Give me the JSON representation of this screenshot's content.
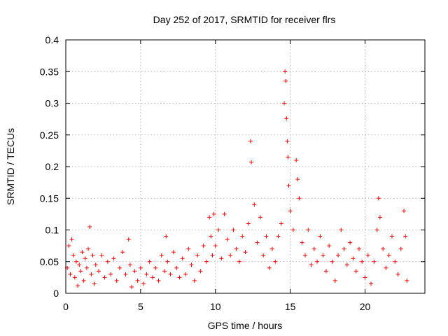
{
  "chart_data": {
    "type": "scatter",
    "title": "Day 252 of 2017, SRMTID for receiver flrs",
    "xlabel": "GPS time / hours",
    "ylabel": "SRMTID / TECUs",
    "xlim": [
      0,
      24
    ],
    "ylim": [
      0,
      0.4
    ],
    "x_ticks": [
      0,
      5,
      10,
      15,
      20
    ],
    "x_tick_labels": [
      "0",
      "5",
      "10",
      "15",
      "20"
    ],
    "y_ticks": [
      0,
      0.05,
      0.1,
      0.15,
      0.2,
      0.25,
      0.3,
      0.35,
      0.4
    ],
    "y_tick_labels": [
      "0",
      "0.05",
      "0.1",
      "0.15",
      "0.2",
      "0.25",
      "0.3",
      "0.35",
      "0.4"
    ],
    "grid": true,
    "marker": "+",
    "color": "#ff0000",
    "series": [
      {
        "name": "SRMTID",
        "points": [
          [
            0.1,
            0.04
          ],
          [
            0.2,
            0.075
          ],
          [
            0.3,
            0.03
          ],
          [
            0.4,
            0.085
          ],
          [
            0.5,
            0.06
          ],
          [
            0.6,
            0.025
          ],
          [
            0.7,
            0.05
          ],
          [
            0.8,
            0.012
          ],
          [
            0.9,
            0.045
          ],
          [
            1.0,
            0.035
          ],
          [
            1.1,
            0.065
          ],
          [
            1.2,
            0.02
          ],
          [
            1.3,
            0.055
          ],
          [
            1.4,
            0.04
          ],
          [
            1.5,
            0.07
          ],
          [
            1.6,
            0.105
          ],
          [
            1.7,
            0.03
          ],
          [
            1.8,
            0.06
          ],
          [
            1.9,
            0.015
          ],
          [
            2.0,
            0.045
          ],
          [
            2.2,
            0.035
          ],
          [
            2.4,
            0.06
          ],
          [
            2.6,
            0.025
          ],
          [
            2.8,
            0.05
          ],
          [
            3.0,
            0.03
          ],
          [
            3.2,
            0.055
          ],
          [
            3.4,
            0.02
          ],
          [
            3.6,
            0.04
          ],
          [
            3.8,
            0.065
          ],
          [
            4.0,
            0.03
          ],
          [
            4.2,
            0.085
          ],
          [
            4.3,
            0.045
          ],
          [
            4.4,
            0.01
          ],
          [
            4.6,
            0.035
          ],
          [
            4.8,
            0.02
          ],
          [
            5.0,
            0.04
          ],
          [
            5.2,
            0.015
          ],
          [
            5.4,
            0.03
          ],
          [
            5.6,
            0.05
          ],
          [
            5.8,
            0.025
          ],
          [
            6.0,
            0.04
          ],
          [
            6.2,
            0.02
          ],
          [
            6.4,
            0.06
          ],
          [
            6.6,
            0.035
          ],
          [
            6.7,
            0.09
          ],
          [
            6.8,
            0.05
          ],
          [
            7.0,
            0.03
          ],
          [
            7.2,
            0.065
          ],
          [
            7.4,
            0.04
          ],
          [
            7.6,
            0.025
          ],
          [
            7.8,
            0.055
          ],
          [
            8.0,
            0.03
          ],
          [
            8.2,
            0.07
          ],
          [
            8.4,
            0.045
          ],
          [
            8.6,
            0.02
          ],
          [
            8.8,
            0.06
          ],
          [
            9.0,
            0.035
          ],
          [
            9.2,
            0.075
          ],
          [
            9.4,
            0.05
          ],
          [
            9.6,
            0.12
          ],
          [
            9.7,
            0.09
          ],
          [
            9.8,
            0.06
          ],
          [
            9.9,
            0.125
          ],
          [
            10.0,
            0.075
          ],
          [
            10.2,
            0.1
          ],
          [
            10.4,
            0.055
          ],
          [
            10.6,
            0.125
          ],
          [
            10.8,
            0.085
          ],
          [
            11.0,
            0.06
          ],
          [
            11.2,
            0.1
          ],
          [
            11.4,
            0.07
          ],
          [
            11.6,
            0.05
          ],
          [
            11.8,
            0.09
          ],
          [
            12.0,
            0.065
          ],
          [
            12.2,
            0.11
          ],
          [
            12.35,
            0.24
          ],
          [
            12.4,
            0.207
          ],
          [
            12.6,
            0.14
          ],
          [
            12.8,
            0.08
          ],
          [
            13.0,
            0.12
          ],
          [
            13.2,
            0.06
          ],
          [
            13.4,
            0.09
          ],
          [
            13.6,
            0.04
          ],
          [
            13.8,
            0.07
          ],
          [
            14.0,
            0.05
          ],
          [
            14.2,
            0.09
          ],
          [
            14.4,
            0.11
          ],
          [
            14.6,
            0.3
          ],
          [
            14.65,
            0.35
          ],
          [
            14.7,
            0.335
          ],
          [
            14.75,
            0.276
          ],
          [
            14.8,
            0.24
          ],
          [
            14.85,
            0.215
          ],
          [
            14.9,
            0.17
          ],
          [
            15.0,
            0.13
          ],
          [
            15.2,
            0.1
          ],
          [
            15.4,
            0.21
          ],
          [
            15.5,
            0.18
          ],
          [
            15.6,
            0.15
          ],
          [
            15.8,
            0.08
          ],
          [
            16.0,
            0.06
          ],
          [
            16.2,
            0.1
          ],
          [
            16.4,
            0.045
          ],
          [
            16.6,
            0.07
          ],
          [
            16.8,
            0.05
          ],
          [
            17.0,
            0.09
          ],
          [
            17.2,
            0.06
          ],
          [
            17.4,
            0.035
          ],
          [
            17.6,
            0.075
          ],
          [
            17.8,
            0.05
          ],
          [
            18.0,
            0.02
          ],
          [
            18.2,
            0.06
          ],
          [
            18.4,
            0.1
          ],
          [
            18.6,
            0.07
          ],
          [
            18.8,
            0.045
          ],
          [
            19.0,
            0.08
          ],
          [
            19.2,
            0.055
          ],
          [
            19.4,
            0.035
          ],
          [
            19.6,
            0.07
          ],
          [
            19.8,
            0.05
          ],
          [
            20.0,
            0.025
          ],
          [
            20.2,
            0.06
          ],
          [
            20.4,
            0.015
          ],
          [
            20.6,
            0.05
          ],
          [
            20.8,
            0.1
          ],
          [
            20.9,
            0.15
          ],
          [
            21.0,
            0.12
          ],
          [
            21.2,
            0.07
          ],
          [
            21.4,
            0.04
          ],
          [
            21.6,
            0.06
          ],
          [
            21.8,
            0.09
          ],
          [
            22.0,
            0.05
          ],
          [
            22.2,
            0.03
          ],
          [
            22.4,
            0.07
          ],
          [
            22.6,
            0.13
          ],
          [
            22.7,
            0.09
          ],
          [
            22.8,
            0.02
          ]
        ]
      }
    ]
  }
}
